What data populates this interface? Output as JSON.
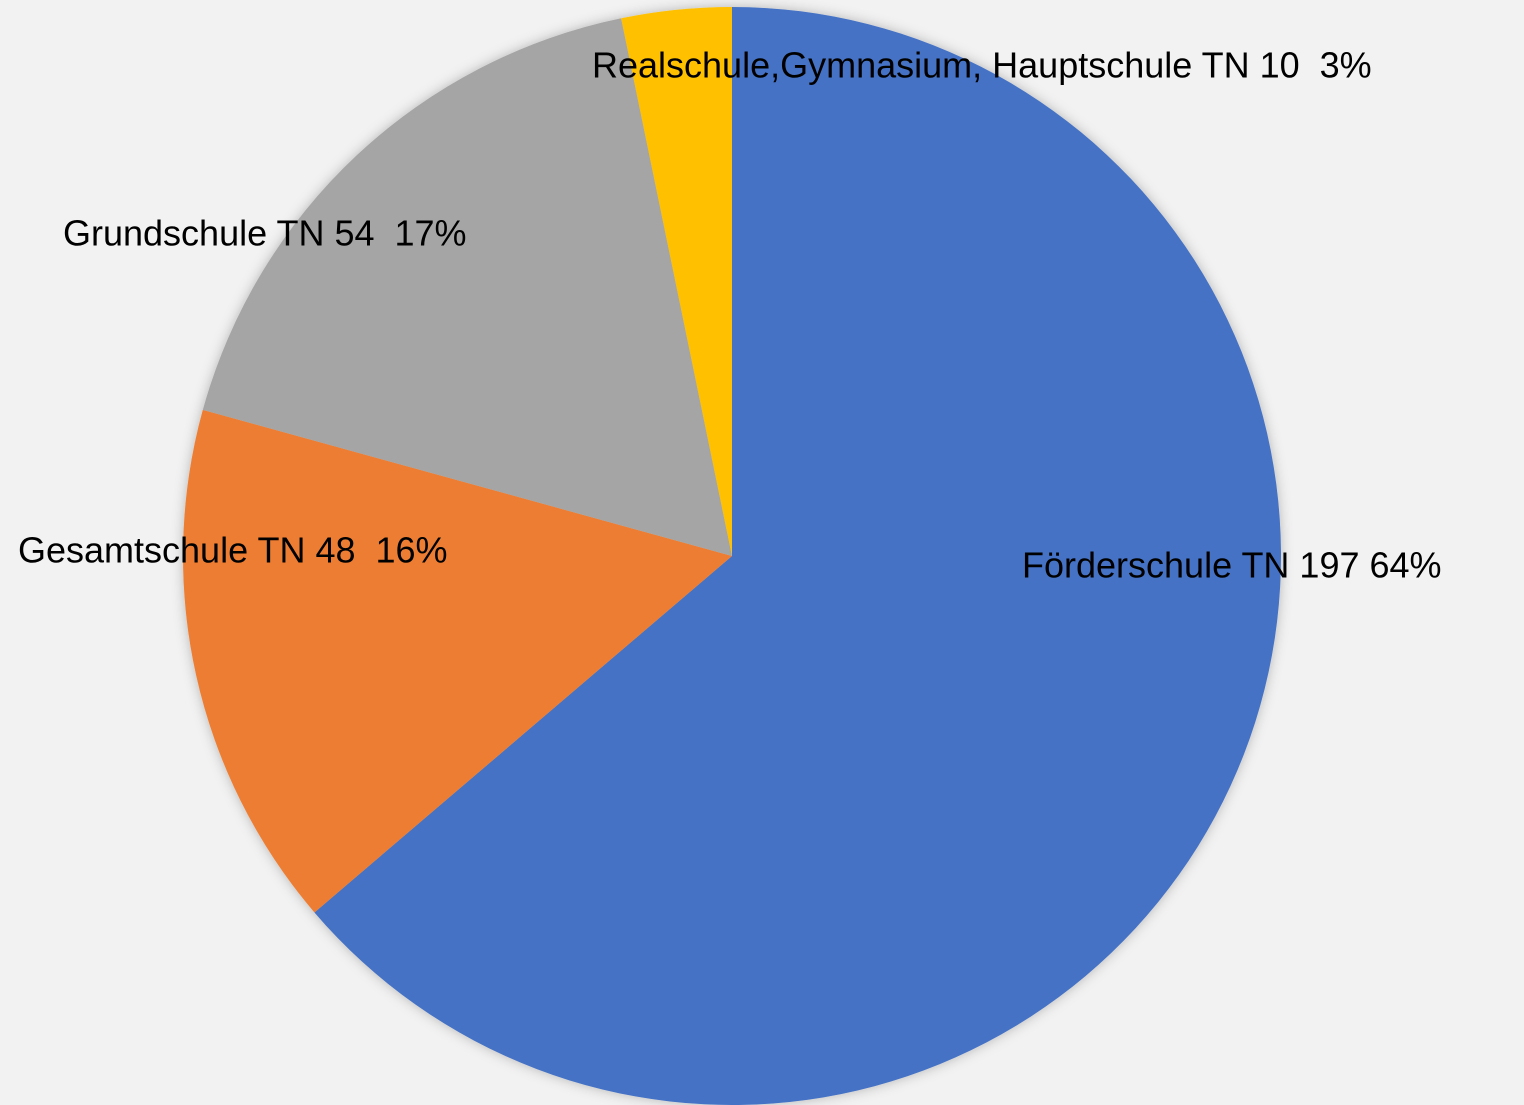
{
  "chart_data": {
    "type": "pie",
    "categories": [
      "Förderschule TN 197 64%",
      "Gesamtschule TN 48  16%",
      "Grundschule TN 54  17%",
      "Realschule,Gymnasium, Hauptschule TN 10  3%"
    ],
    "values": [
      197,
      48,
      54,
      10
    ],
    "colors": [
      "#4472c4",
      "#ed7d31",
      "#a5a5a5",
      "#ffc000"
    ]
  }
}
